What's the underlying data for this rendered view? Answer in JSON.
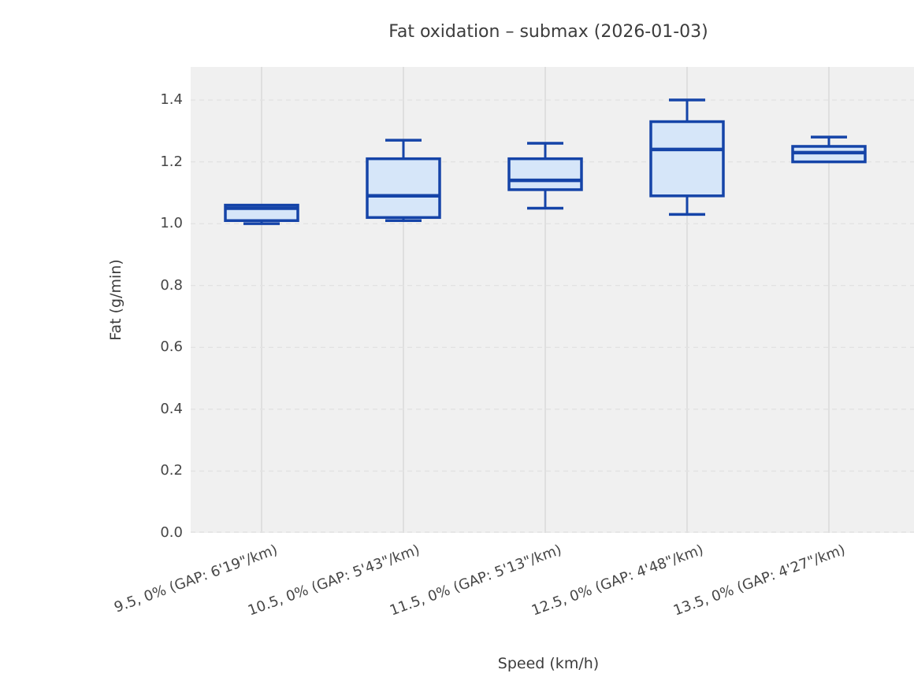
{
  "chart_data": {
    "type": "box",
    "title": "Fat oxidation – submax (2026-01-03)",
    "xlabel": "Speed (km/h)",
    "ylabel": "Fat (g/min)",
    "categories": [
      "9.5, 0% (GAP: 6'19\"/km)",
      "10.5, 0% (GAP: 5'43\"/km)",
      "11.5, 0% (GAP: 5'13\"/km)",
      "12.5, 0% (GAP: 4'48\"/km)",
      "13.5, 0% (GAP: 4'27\"/km)"
    ],
    "series": [
      {
        "name": "9.5 km/h",
        "min": 1.0,
        "q1": 1.01,
        "median": 1.05,
        "q3": 1.06,
        "max": 1.06
      },
      {
        "name": "10.5 km/h",
        "min": 1.01,
        "q1": 1.02,
        "median": 1.09,
        "q3": 1.21,
        "max": 1.27
      },
      {
        "name": "11.5 km/h",
        "min": 1.05,
        "q1": 1.11,
        "median": 1.14,
        "q3": 1.21,
        "max": 1.26
      },
      {
        "name": "12.5 km/h",
        "min": 1.03,
        "q1": 1.09,
        "median": 1.24,
        "q3": 1.33,
        "max": 1.4
      },
      {
        "name": "13.5 km/h",
        "min": 1.2,
        "q1": 1.2,
        "median": 1.23,
        "q3": 1.25,
        "max": 1.28
      }
    ],
    "yticks": [
      0.0,
      0.2,
      0.4,
      0.6,
      0.8,
      1.0,
      1.2,
      1.4
    ],
    "ylim": [
      0.0,
      1.507
    ],
    "grid": {
      "horizontal": "dashed",
      "vertical": "solid"
    },
    "legend": "none",
    "colors": {
      "box_fill": "#d6e6f9",
      "box_edge": "#1544a8",
      "plot_bg": "#f0f0f0",
      "grid_h": "#e2e2e2",
      "grid_v": "#d8d8d8",
      "text": "#3c3c3c"
    }
  }
}
